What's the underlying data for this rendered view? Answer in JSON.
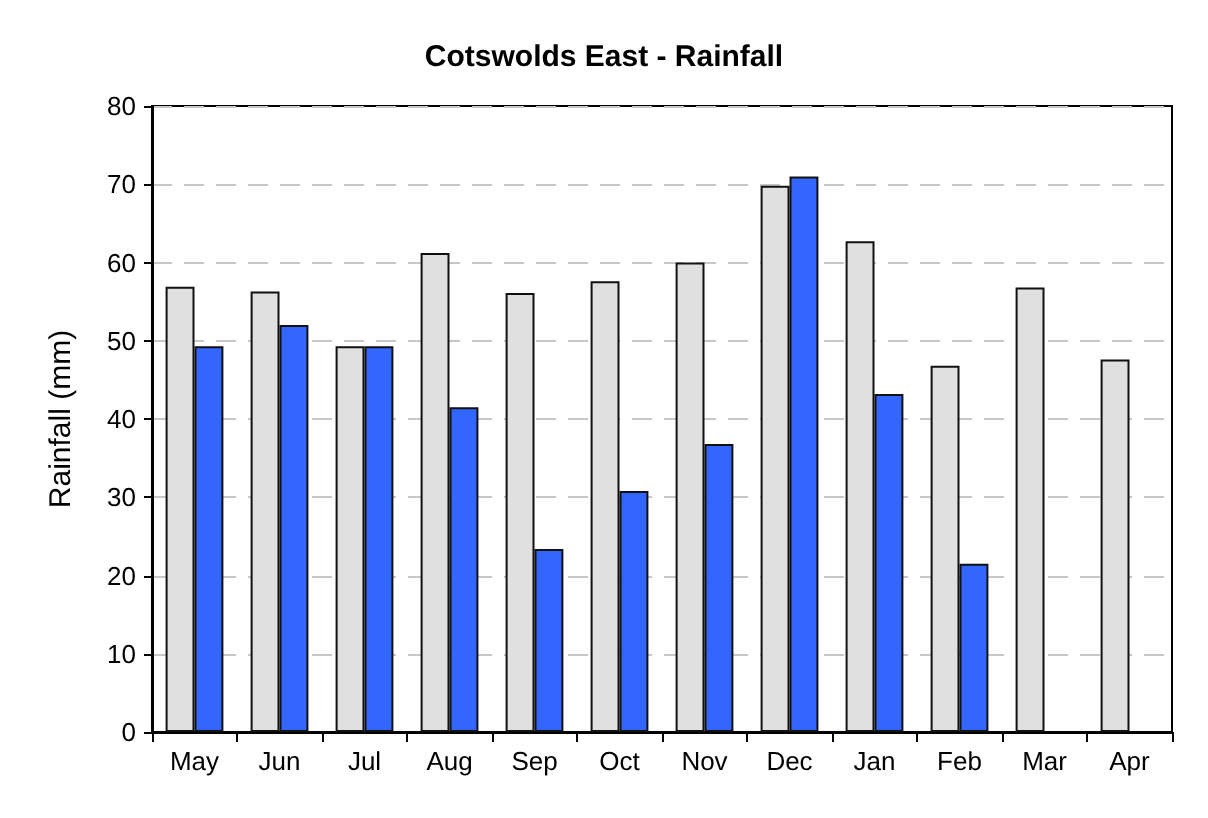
{
  "chart_data": {
    "type": "bar",
    "title": "Cotswolds East - Rainfall",
    "ylabel": "Rainfall (mm)",
    "categories": [
      "May",
      "Jun",
      "Jul",
      "Aug",
      "Sep",
      "Oct",
      "Nov",
      "Dec",
      "Jan",
      "Feb",
      "Mar",
      "Apr"
    ],
    "series": [
      {
        "color": "#e0e0e0",
        "values": [
          56.9,
          56.3,
          49.3,
          61.2,
          56.1,
          57.6,
          60.0,
          69.8,
          62.7,
          46.8,
          56.8,
          47.6
        ]
      },
      {
        "color": "#3366ff",
        "values": [
          49.3,
          52.0,
          49.3,
          41.5,
          23.4,
          30.8,
          36.8,
          71.0,
          43.2,
          21.5,
          null,
          null
        ]
      }
    ],
    "ylim": [
      0,
      80
    ],
    "yticks": [
      0,
      10,
      20,
      30,
      40,
      50,
      60,
      70,
      80
    ],
    "grid": "y"
  }
}
